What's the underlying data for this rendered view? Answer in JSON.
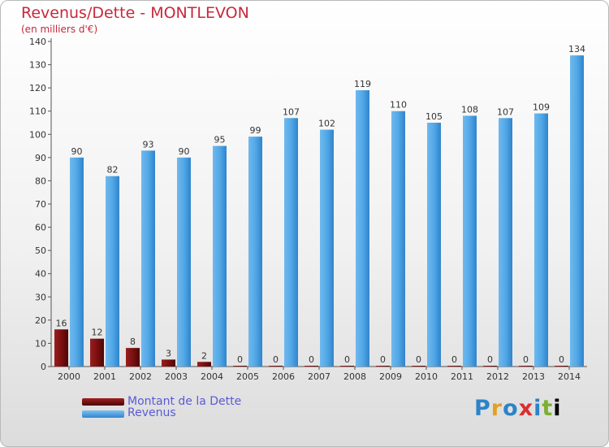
{
  "title": "Revenus/Dette - MONTLEVON",
  "subtitle": "(en milliers d'€)",
  "logo_text": "Proxiti",
  "colors": {
    "title": "#c8283b",
    "debt": "#6e0e0e",
    "revenue": "#4aa0e2",
    "legend_text": "#5a5ad8"
  },
  "chart_data": {
    "type": "bar",
    "title": "Revenus/Dette - MONTLEVON",
    "subtitle": "(en milliers d'€)",
    "xlabel": "",
    "ylabel": "",
    "ylim": [
      0,
      140
    ],
    "yticks": [
      0,
      10,
      20,
      30,
      40,
      50,
      60,
      70,
      80,
      90,
      100,
      110,
      120,
      130,
      140
    ],
    "grid": false,
    "legend_position": "bottom-left",
    "categories": [
      "2000",
      "2001",
      "2002",
      "2003",
      "2004",
      "2005",
      "2006",
      "2007",
      "2008",
      "2009",
      "2010",
      "2011",
      "2012",
      "2013",
      "2014"
    ],
    "series": [
      {
        "name": "Montant de la Dette",
        "color": "#6e0e0e",
        "values": [
          16,
          12,
          8,
          3,
          2,
          0,
          0,
          0,
          0,
          0,
          0,
          0,
          0,
          0,
          0
        ]
      },
      {
        "name": "Revenus",
        "color": "#4aa0e2",
        "values": [
          90,
          82,
          93,
          90,
          95,
          99,
          107,
          102,
          119,
          110,
          105,
          108,
          107,
          109,
          134
        ]
      }
    ]
  }
}
